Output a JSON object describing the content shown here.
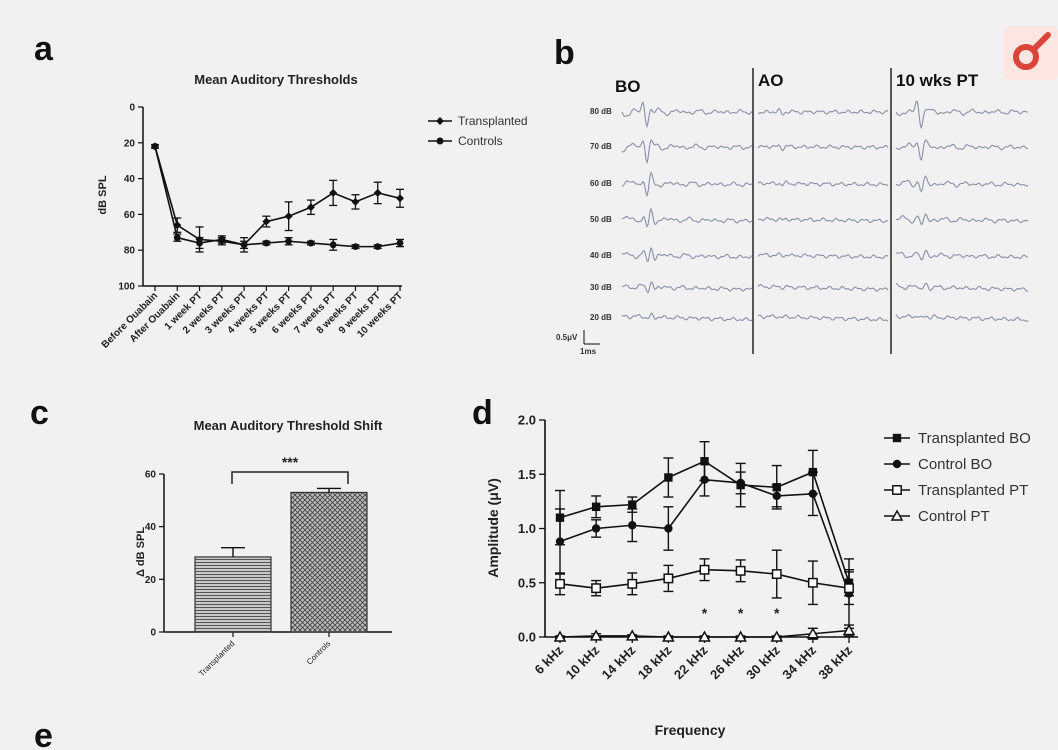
{
  "panels": {
    "a": "a",
    "b": "b",
    "c": "c",
    "d": "d",
    "e": "e"
  },
  "colors": {
    "trace": "#8a8fa8",
    "ink": "#111111",
    "logo": "#d9453a"
  },
  "chart_data": [
    {
      "panel": "a",
      "type": "line",
      "title": "Mean Auditory Thresholds",
      "ylabel": "dB SPL",
      "ylim": [
        0,
        100
      ],
      "y_inverted": true,
      "yticks": [
        "0",
        "20",
        "40",
        "60",
        "80",
        "100"
      ],
      "categories": [
        "Before Ouabain",
        "After Ouabain",
        "1 week PT",
        "2 weeks PT",
        "3 weeks PT",
        "4 weeks PT",
        "5 weeks PT",
        "6 weeks PT",
        "7 weeks PT",
        "8 weeks PT",
        "9 weeks PT",
        "10 weeks PT"
      ],
      "legend_position": "top-right",
      "series": [
        {
          "name": "Transplanted",
          "marker": "diamond",
          "values": [
            22,
            66,
            74,
            75,
            77,
            64,
            61,
            56,
            48,
            53,
            48,
            51
          ],
          "errors": [
            1,
            4,
            7,
            2,
            4,
            3,
            8,
            4,
            7,
            4,
            6,
            5
          ]
        },
        {
          "name": "Controls",
          "marker": "circle",
          "values": [
            22,
            73,
            76,
            74,
            77,
            76,
            75,
            76,
            77,
            78,
            78,
            76
          ],
          "errors": [
            1,
            2,
            3,
            2,
            2,
            1,
            2,
            1,
            3,
            1,
            1,
            2
          ]
        }
      ]
    },
    {
      "panel": "b",
      "type": "traces",
      "columns": [
        "BO",
        "AO",
        "10 wks PT"
      ],
      "rows": [
        "80 dB",
        "70 dB",
        "60 dB",
        "50 dB",
        "40 dB",
        "30 dB",
        "20 dB"
      ],
      "scale_v": "0.5μV",
      "scale_t": "1ms"
    },
    {
      "panel": "c",
      "type": "bar",
      "title": "Mean Auditory Threshold Shift",
      "ylabel": "Δ dB SPL",
      "ylim": [
        0,
        60
      ],
      "yticks": [
        "0",
        "20",
        "40",
        "60"
      ],
      "categories": [
        "Transplanted",
        "Controls"
      ],
      "values": [
        28.5,
        53
      ],
      "errors": [
        3.5,
        1.5
      ],
      "significance": "***"
    },
    {
      "panel": "d",
      "type": "line",
      "xlabel": "Frequency",
      "ylabel": "Amplitude (μV)",
      "ylim": [
        0,
        2
      ],
      "yticks": [
        "0.0",
        "0.5",
        "1.0",
        "1.5",
        "2.0"
      ],
      "categories": [
        "6 kHz",
        "10 kHz",
        "14 kHz",
        "18 kHz",
        "22 kHz",
        "26 kHz",
        "30 kHz",
        "34 kHz",
        "38 kHz"
      ],
      "legend_position": "right",
      "significance_marks": [
        "*",
        "*",
        "*"
      ],
      "significance_at": [
        4,
        5,
        6
      ],
      "series": [
        {
          "name": "Transplanted BO",
          "marker": "square",
          "values": [
            1.1,
            1.2,
            1.22,
            1.47,
            1.62,
            1.4,
            1.38,
            1.52,
            0.5
          ],
          "errors": [
            0.25,
            0.1,
            0.07,
            0.18,
            0.18,
            0.2,
            0.2,
            0.2,
            0.12
          ]
        },
        {
          "name": "Control BO",
          "marker": "circle",
          "values": [
            0.88,
            1.0,
            1.03,
            1.0,
            1.45,
            1.42,
            1.3,
            1.32,
            0.4
          ],
          "errors": [
            0.3,
            0.08,
            0.15,
            0.2,
            0.15,
            0.1,
            0.1,
            0.2,
            0.32
          ]
        },
        {
          "name": "Transplanted PT",
          "marker": "open-square",
          "values": [
            0.49,
            0.45,
            0.49,
            0.54,
            0.62,
            0.61,
            0.58,
            0.5,
            0.45
          ],
          "errors": [
            0.1,
            0.07,
            0.1,
            0.12,
            0.1,
            0.1,
            0.22,
            0.2,
            0.15
          ]
        },
        {
          "name": "Control PT",
          "marker": "open-triangle",
          "values": [
            0.0,
            0.01,
            0.01,
            0.0,
            0.0,
            0.0,
            0.0,
            0.03,
            0.06
          ],
          "errors": [
            0.01,
            0.02,
            0.01,
            0.01,
            0.01,
            0.01,
            0.01,
            0.05,
            0.05
          ]
        }
      ]
    }
  ]
}
